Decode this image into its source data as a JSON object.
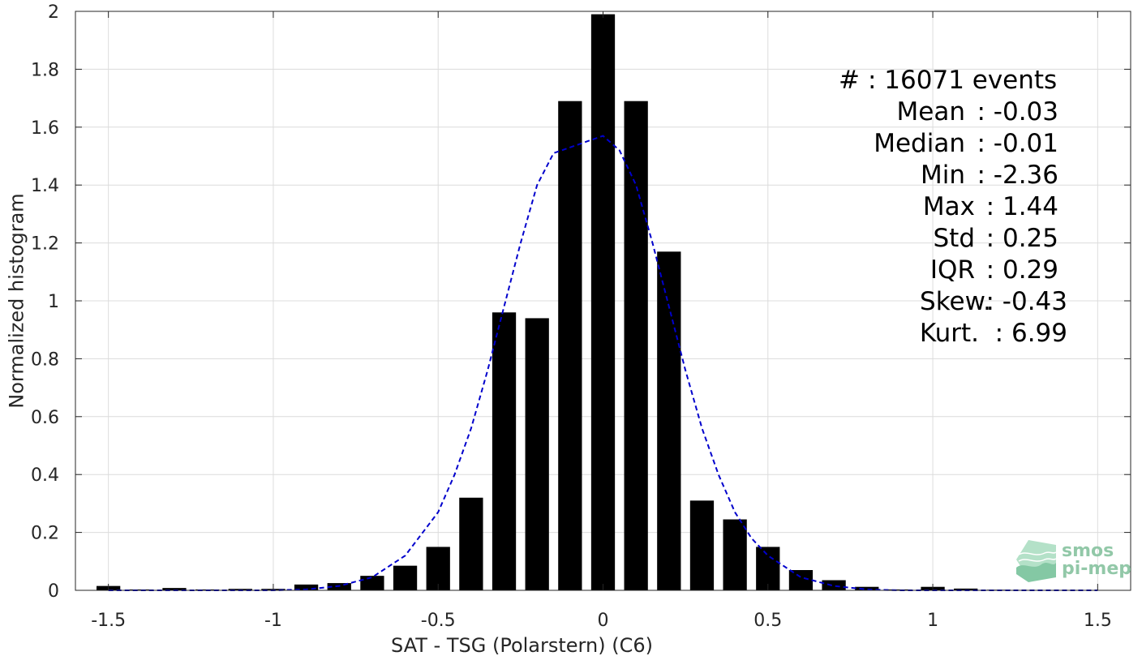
{
  "chart_data": {
    "type": "bar",
    "xlabel": "SAT - TSG (Polarstern) (C6)",
    "ylabel": "Normalized histogram",
    "xlim": [
      -1.6,
      1.6
    ],
    "ylim": [
      0,
      2
    ],
    "xticks": [
      -1.5,
      -1,
      -0.5,
      0,
      0.5,
      1,
      1.5
    ],
    "xtick_labels": [
      "-1.5",
      "-1",
      "-0.5",
      "0",
      "0.5",
      "1",
      "1.5"
    ],
    "yticks": [
      0,
      0.2,
      0.4,
      0.6,
      0.8,
      1,
      1.2,
      1.4,
      1.6,
      1.8,
      2
    ],
    "ytick_labels": [
      "0",
      "0.2",
      "0.4",
      "0.6",
      "0.8",
      "1",
      "1.2",
      "1.4",
      "1.6",
      "1.8",
      "2"
    ],
    "grid": true,
    "bar_color": "#000000",
    "bins": [
      -1.5,
      -1.4,
      -1.3,
      -1.2,
      -1.1,
      -1.0,
      -0.9,
      -0.8,
      -0.7,
      -0.6,
      -0.5,
      -0.4,
      -0.3,
      -0.2,
      -0.1,
      0.0,
      0.1,
      0.2,
      0.3,
      0.4,
      0.5,
      0.6,
      0.7,
      0.8,
      0.9,
      1.0,
      1.1,
      1.2,
      1.3,
      1.4,
      1.5
    ],
    "values": [
      0.015,
      0.003,
      0.008,
      0.003,
      0.005,
      0.005,
      0.02,
      0.025,
      0.05,
      0.085,
      0.15,
      0.32,
      0.96,
      0.94,
      1.69,
      1.99,
      1.69,
      1.17,
      0.31,
      0.245,
      0.15,
      0.07,
      0.035,
      0.012,
      0.003,
      0.012,
      0.006,
      0.002,
      0.001,
      0.001,
      0.001
    ],
    "fit": {
      "style": "dashed",
      "color": "#0000cc",
      "x": [
        -1.5,
        -1.4,
        -1.3,
        -1.2,
        -1.1,
        -1.0,
        -0.9,
        -0.8,
        -0.7,
        -0.6,
        -0.5,
        -0.45,
        -0.4,
        -0.35,
        -0.3,
        -0.25,
        -0.2,
        -0.15,
        -0.1,
        -0.05,
        0.0,
        0.05,
        0.1,
        0.15,
        0.2,
        0.25,
        0.3,
        0.35,
        0.4,
        0.45,
        0.5,
        0.6,
        0.7,
        0.8,
        0.9,
        1.0,
        1.1,
        1.2,
        1.3,
        1.4,
        1.5
      ],
      "y": [
        0.0,
        0.0,
        0.0,
        0.0,
        0.0,
        0.0,
        0.003,
        0.015,
        0.045,
        0.12,
        0.27,
        0.4,
        0.56,
        0.76,
        0.98,
        1.2,
        1.4,
        1.51,
        1.53,
        1.55,
        1.57,
        1.52,
        1.4,
        1.2,
        0.98,
        0.76,
        0.56,
        0.4,
        0.27,
        0.18,
        0.12,
        0.045,
        0.015,
        0.003,
        0.0,
        0.0,
        0.0,
        0.0,
        0.0,
        0.0,
        0.0
      ]
    }
  },
  "stats": [
    {
      "label": "#  ",
      "value": ": 16071 events"
    },
    {
      "label": "Mean",
      "value": ": -0.03"
    },
    {
      "label": "Median",
      "value": ": -0.01"
    },
    {
      "label": "Min",
      "value": ": -2.36"
    },
    {
      "label": "Max",
      "value": ": 1.44"
    },
    {
      "label": "Std",
      "value": ": 0.25"
    },
    {
      "label": "IQR",
      "value": ": 0.29"
    },
    {
      "label": "Skew.",
      "value": ": -0.43"
    },
    {
      "label": "Kurt.",
      "value": ": 6.99"
    }
  ],
  "logo": {
    "line1": "smos",
    "line2": "pi-mep",
    "color": "#7fbf9a"
  }
}
